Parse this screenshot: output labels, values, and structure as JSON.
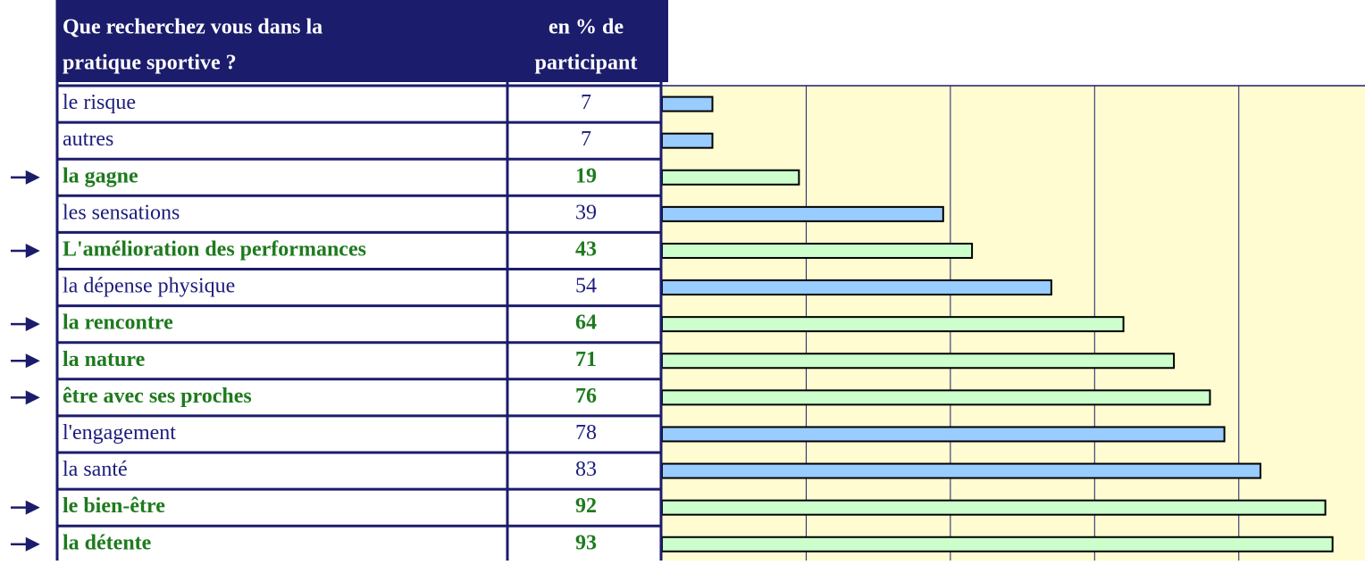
{
  "chart_data": {
    "type": "bar",
    "orientation": "horizontal",
    "header_label": [
      "Que recherchez vous dans la",
      "pratique sportive ?"
    ],
    "header_value": [
      "en % de",
      "participant"
    ],
    "categories": [
      "le risque",
      "autres",
      "la gagne",
      "les sensations",
      "L'amélioration des performances",
      "la dépense physique",
      "la rencontre",
      "la nature",
      "être avec ses proches",
      "l'engagement",
      "la santé",
      "le bien-être",
      "la détente"
    ],
    "values": [
      7,
      7,
      19,
      39,
      43,
      54,
      64,
      71,
      76,
      78,
      83,
      92,
      93
    ],
    "highlighted": [
      false,
      false,
      true,
      false,
      true,
      false,
      true,
      true,
      true,
      false,
      false,
      true,
      true
    ],
    "colors": [
      "#99ccff",
      "#99ccff",
      "#ccffcc",
      "#99ccff",
      "#ccffcc",
      "#99ccff",
      "#ccffcc",
      "#ccffcc",
      "#ccffcc",
      "#99ccff",
      "#99ccff",
      "#ccffcc",
      "#ccffcc"
    ],
    "xlim": [
      0,
      97.5
    ],
    "xticks": [
      0,
      20,
      40,
      60,
      80
    ],
    "grid": true
  }
}
